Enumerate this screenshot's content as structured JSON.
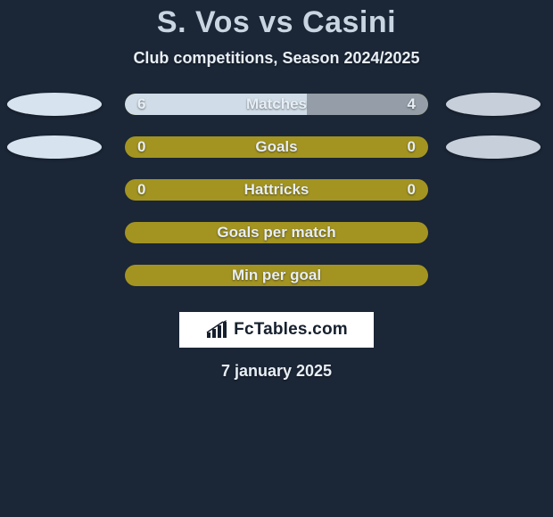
{
  "background_color": "#1b2636",
  "text_color": "#e8eef5",
  "title_color": "#c9d6e2",
  "brand_bg": "#ffffff",
  "brand_text_color": "#16202e",
  "title": "S. Vos vs Casini",
  "subtitle": "Club competitions, Season 2024/2025",
  "date": "7 january 2025",
  "bar_bg_olive": "#a39422",
  "fill_player1": "#d0dde8",
  "fill_player2": "#959ea8",
  "ellipse_player1": "#d7e3ee",
  "ellipse_player2": "#c7d0da",
  "rows": [
    {
      "label": "Matches",
      "left": "6",
      "right": "4",
      "left_pct": 60,
      "right_pct": 40,
      "show_left_ellipse": true,
      "show_right_ellipse": true
    },
    {
      "label": "Goals",
      "left": "0",
      "right": "0",
      "left_pct": 0,
      "right_pct": 0,
      "show_left_ellipse": true,
      "show_right_ellipse": true
    },
    {
      "label": "Hattricks",
      "left": "0",
      "right": "0",
      "left_pct": 0,
      "right_pct": 0,
      "show_left_ellipse": false,
      "show_right_ellipse": false
    },
    {
      "label": "Goals per match",
      "left": "",
      "right": "",
      "left_pct": 0,
      "right_pct": 0,
      "show_left_ellipse": false,
      "show_right_ellipse": false
    },
    {
      "label": "Min per goal",
      "left": "",
      "right": "",
      "left_pct": 0,
      "right_pct": 0,
      "show_left_ellipse": false,
      "show_right_ellipse": false
    }
  ],
  "brand_label": "FcTables.com"
}
